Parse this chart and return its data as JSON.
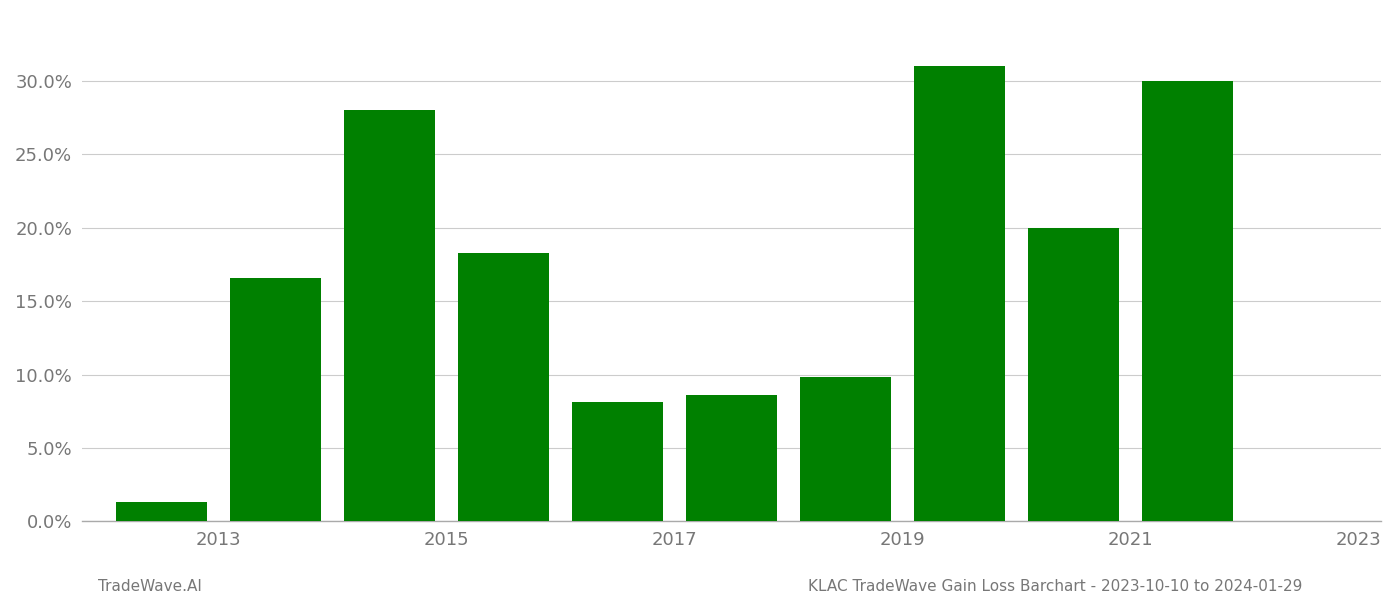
{
  "years": [
    2013,
    2014,
    2015,
    2016,
    2017,
    2018,
    2019,
    2020,
    2021,
    2022
  ],
  "values": [
    0.013,
    0.166,
    0.28,
    0.183,
    0.081,
    0.086,
    0.098,
    0.31,
    0.2,
    0.3
  ],
  "bar_color": "#008000",
  "ylim": [
    0,
    0.345
  ],
  "yticks": [
    0.0,
    0.05,
    0.1,
    0.15,
    0.2,
    0.25,
    0.3
  ],
  "xlim_min": 2012.3,
  "xlim_max": 2023.7,
  "xtick_positions": [
    2013.5,
    2015.5,
    2017.5,
    2019.5,
    2021.5,
    2023.5
  ],
  "xtick_labels": [
    "2013",
    "2015",
    "2017",
    "2019",
    "2021",
    "2023"
  ],
  "footer_left": "TradeWave.AI",
  "footer_right": "KLAC TradeWave Gain Loss Barchart - 2023-10-10 to 2024-01-29",
  "background_color": "#ffffff",
  "grid_color": "#cccccc",
  "bar_width": 0.8,
  "figsize": [
    14.0,
    6.0
  ],
  "dpi": 100,
  "tick_label_fontsize": 13,
  "tick_label_color": "#777777",
  "footer_fontsize": 11,
  "footer_color": "#777777"
}
